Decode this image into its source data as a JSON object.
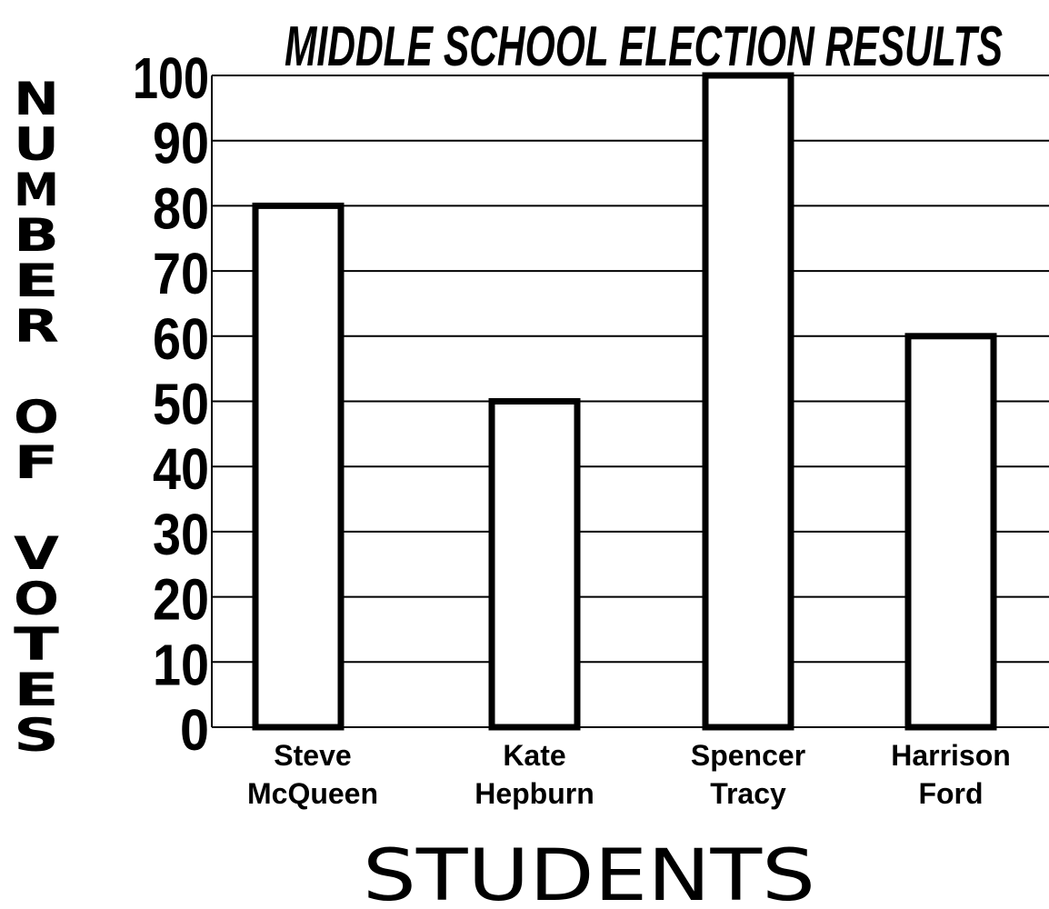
{
  "chart_data": {
    "type": "bar",
    "title": "MIDDLE SCHOOL ELECTION RESULTS",
    "xlabel": "STUDENTS",
    "ylabel": "NUMBER OF VOTES",
    "categories": [
      [
        "Steve",
        "McQueen"
      ],
      [
        "Kate",
        "Hepburn"
      ],
      [
        "Spencer",
        "Tracy"
      ],
      [
        "Harrison",
        "Ford"
      ]
    ],
    "values": [
      80,
      50,
      100,
      60
    ],
    "ylim": [
      0,
      100
    ],
    "yticks": [
      0,
      10,
      20,
      30,
      40,
      50,
      60,
      70,
      80,
      90,
      100
    ],
    "grid": true,
    "colors": {
      "bar_fill": "#ffffff",
      "bar_stroke": "#000000",
      "grid": "#000000",
      "text": "#000000"
    }
  }
}
